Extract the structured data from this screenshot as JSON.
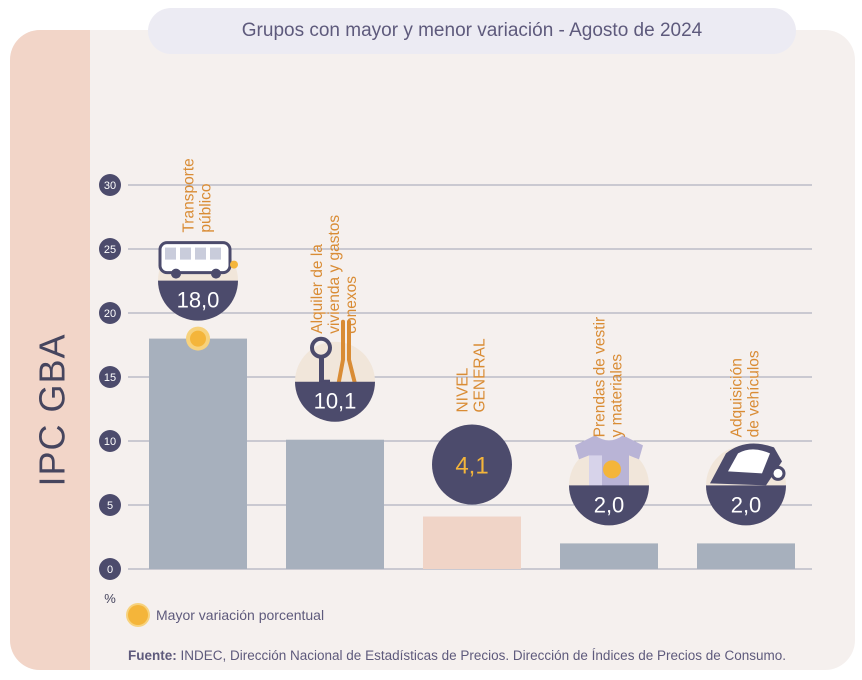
{
  "title": "Grupos con mayor y menor variación - Agosto de 2024",
  "side_label": "IPC GBA",
  "legend": {
    "label": "Mayor variación porcentual"
  },
  "source": {
    "prefix": "Fuente:",
    "text": " INDEC, Dirección Nacional de Estadísticas de Precios. Dirección de Índices de Precios de Consumo."
  },
  "colors": {
    "bar": "#a7b0bd",
    "highlight_bar": "#f0d4c7",
    "circle": "#4c4b6c",
    "label": "#d98c35",
    "accent": "#f4b53a"
  },
  "chart_data": {
    "type": "bar",
    "categories": [
      [
        "Transporte",
        "público"
      ],
      [
        "Alquiler de la",
        "vivienda y gastos",
        "conexos"
      ],
      [
        "NIVEL",
        "GENERAL"
      ],
      [
        "Prendas de vestir",
        "y materiales"
      ],
      [
        "Adquisición",
        "de vehículos"
      ]
    ],
    "values": [
      18.0,
      10.1,
      4.1,
      2.0,
      2.0
    ],
    "value_labels": [
      "18,0",
      "10,1",
      "4,1",
      "2,0",
      "2,0"
    ],
    "icons": [
      "bus-icon",
      "key-and-pliers-icon",
      "",
      "tshirt-icon",
      "car-icon"
    ],
    "highlight_index": 0,
    "general_index": 2,
    "ylabel": "%",
    "ylim": [
      0,
      30
    ],
    "yticks": [
      "0",
      "5",
      "10",
      "15",
      "20",
      "25",
      "30"
    ],
    "grid": true,
    "legend_position": "bottom-left"
  }
}
